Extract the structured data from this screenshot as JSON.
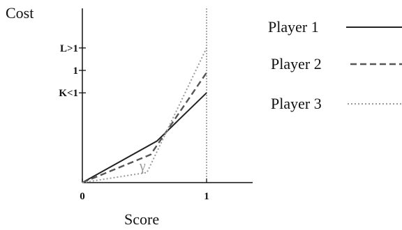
{
  "chart_data": {
    "type": "line",
    "ylabel": "Cost",
    "xlabel": "Score",
    "x_ticks": [
      {
        "value": 0,
        "label": "0"
      },
      {
        "value": 1,
        "label": "1"
      }
    ],
    "y_ticks": [
      {
        "value": 1.2,
        "label": "L>1"
      },
      {
        "value": 1.0,
        "label": "1"
      },
      {
        "value": 0.8,
        "label": "K<1"
      }
    ],
    "xlim": [
      0,
      1.35
    ],
    "ylim": [
      0,
      1.38
    ],
    "reference_line_x": 1,
    "annotation": "γ",
    "series": [
      {
        "name": "Player 1",
        "style": "solid",
        "color": "#222222",
        "points": [
          [
            0,
            0
          ],
          [
            0.6,
            0.37
          ],
          [
            1.0,
            0.8
          ]
        ]
      },
      {
        "name": "Player 2",
        "style": "dashed",
        "color": "#555555",
        "points": [
          [
            0,
            0
          ],
          [
            0.55,
            0.25
          ],
          [
            1.0,
            0.98
          ]
        ]
      },
      {
        "name": "Player 3",
        "style": "dotted",
        "color": "#999999",
        "points": [
          [
            0,
            0
          ],
          [
            0.52,
            0.09
          ],
          [
            1.0,
            1.2
          ]
        ]
      }
    ]
  }
}
